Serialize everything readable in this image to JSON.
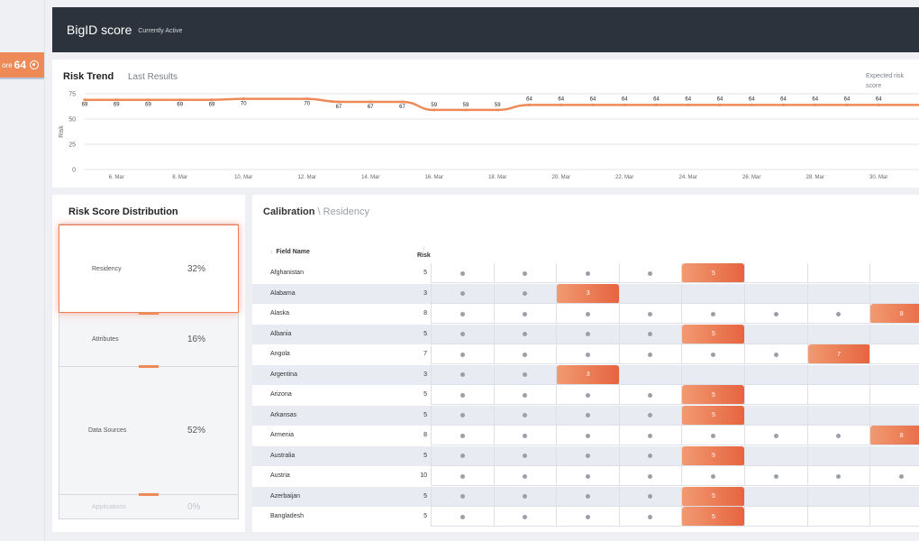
{
  "sidebar": {
    "score_label": "ore",
    "score_value": "64"
  },
  "header": {
    "title": "BigID score",
    "status": "Currently Active"
  },
  "risk_trend": {
    "title": "Risk Trend",
    "subtitle": "Last Results",
    "expected_label": "Expected risk score",
    "chart_data": {
      "type": "line",
      "ylabel": "Risk",
      "ylim": [
        0,
        75
      ],
      "yticks": [
        0,
        25,
        50,
        75
      ],
      "x_ticks": [
        "6. Mar",
        "8. Mar",
        "10. Mar",
        "12. Mar",
        "14. Mar",
        "16. Mar",
        "18. Mar",
        "20. Mar",
        "22. Mar",
        "24. Mar",
        "26. Mar",
        "28. Mar",
        "30. Mar"
      ],
      "series": [
        {
          "color": "#ed8a57",
          "points": [
            {
              "x": 5.0,
              "y": 69
            },
            {
              "x": 6.0,
              "y": 69
            },
            {
              "x": 7.0,
              "y": 69
            },
            {
              "x": 8.0,
              "y": 69
            },
            {
              "x": 9.0,
              "y": 69
            },
            {
              "x": 10.0,
              "y": 70
            },
            {
              "x": 12.0,
              "y": 70
            },
            {
              "x": 13.0,
              "y": 67
            },
            {
              "x": 14.0,
              "y": 67
            },
            {
              "x": 15.0,
              "y": 67
            },
            {
              "x": 16.0,
              "y": 59
            },
            {
              "x": 17.0,
              "y": 59
            },
            {
              "x": 18.0,
              "y": 59
            },
            {
              "x": 19.0,
              "y": 64
            },
            {
              "x": 20.0,
              "y": 64
            },
            {
              "x": 21.0,
              "y": 64
            },
            {
              "x": 22.0,
              "y": 64
            },
            {
              "x": 23.0,
              "y": 64
            },
            {
              "x": 24.0,
              "y": 64
            },
            {
              "x": 25.0,
              "y": 64
            },
            {
              "x": 26.0,
              "y": 64
            },
            {
              "x": 27.0,
              "y": 64
            },
            {
              "x": 28.0,
              "y": 64
            },
            {
              "x": 29.0,
              "y": 64
            },
            {
              "x": 30.0,
              "y": 64
            }
          ]
        }
      ]
    }
  },
  "distribution": {
    "title": "Risk Score Distribution",
    "items": [
      {
        "label": "Residency",
        "percent": "32%",
        "state": "active"
      },
      {
        "label": "Attributes",
        "percent": "16%",
        "state": "normal"
      },
      {
        "label": "Data Sources",
        "percent": "52%",
        "state": "normal"
      },
      {
        "label": "Applications",
        "percent": "0%",
        "state": "faded"
      }
    ]
  },
  "calibration": {
    "title": "Calibration",
    "separator": "\\",
    "crumb": "Residency",
    "col_field": "Field Name",
    "col_risk": "Risk",
    "rows": [
      {
        "name": "Afghanistan",
        "risk": "5",
        "cells": [
          "dot",
          "dot",
          "dot",
          "dot",
          "5",
          "",
          "",
          ""
        ]
      },
      {
        "name": "Alabama",
        "risk": "3",
        "cells": [
          "dot",
          "dot",
          "3",
          "",
          "",
          "",
          "",
          ""
        ]
      },
      {
        "name": "Alaska",
        "risk": "8",
        "cells": [
          "dot",
          "dot",
          "dot",
          "dot",
          "dot",
          "dot",
          "dot",
          "8"
        ]
      },
      {
        "name": "Albania",
        "risk": "5",
        "cells": [
          "dot",
          "dot",
          "dot",
          "dot",
          "5",
          "",
          "",
          ""
        ]
      },
      {
        "name": "Angola",
        "risk": "7",
        "cells": [
          "dot",
          "dot",
          "dot",
          "dot",
          "dot",
          "dot",
          "7",
          ""
        ]
      },
      {
        "name": "Argentina",
        "risk": "3",
        "cells": [
          "dot",
          "dot",
          "3",
          "",
          "",
          "",
          "",
          ""
        ]
      },
      {
        "name": "Arizona",
        "risk": "5",
        "cells": [
          "dot",
          "dot",
          "dot",
          "dot",
          "5",
          "",
          "",
          ""
        ]
      },
      {
        "name": "Arkansas",
        "risk": "5",
        "cells": [
          "dot",
          "dot",
          "dot",
          "dot",
          "5",
          "",
          "",
          ""
        ]
      },
      {
        "name": "Armenia",
        "risk": "8",
        "cells": [
          "dot",
          "dot",
          "dot",
          "dot",
          "dot",
          "dot",
          "dot",
          "8"
        ]
      },
      {
        "name": "Australia",
        "risk": "5",
        "cells": [
          "dot",
          "dot",
          "dot",
          "dot",
          "5",
          "",
          "",
          ""
        ]
      },
      {
        "name": "Austria",
        "risk": "10",
        "cells": [
          "dot",
          "dot",
          "dot",
          "dot",
          "dot",
          "dot",
          "dot",
          "dot"
        ]
      },
      {
        "name": "Azerbaijan",
        "risk": "5",
        "cells": [
          "dot",
          "dot",
          "dot",
          "dot",
          "5",
          "",
          "",
          ""
        ]
      },
      {
        "name": "Bangladesh",
        "risk": "5",
        "cells": [
          "dot",
          "dot",
          "dot",
          "dot",
          "5",
          "",
          "",
          ""
        ]
      }
    ]
  }
}
